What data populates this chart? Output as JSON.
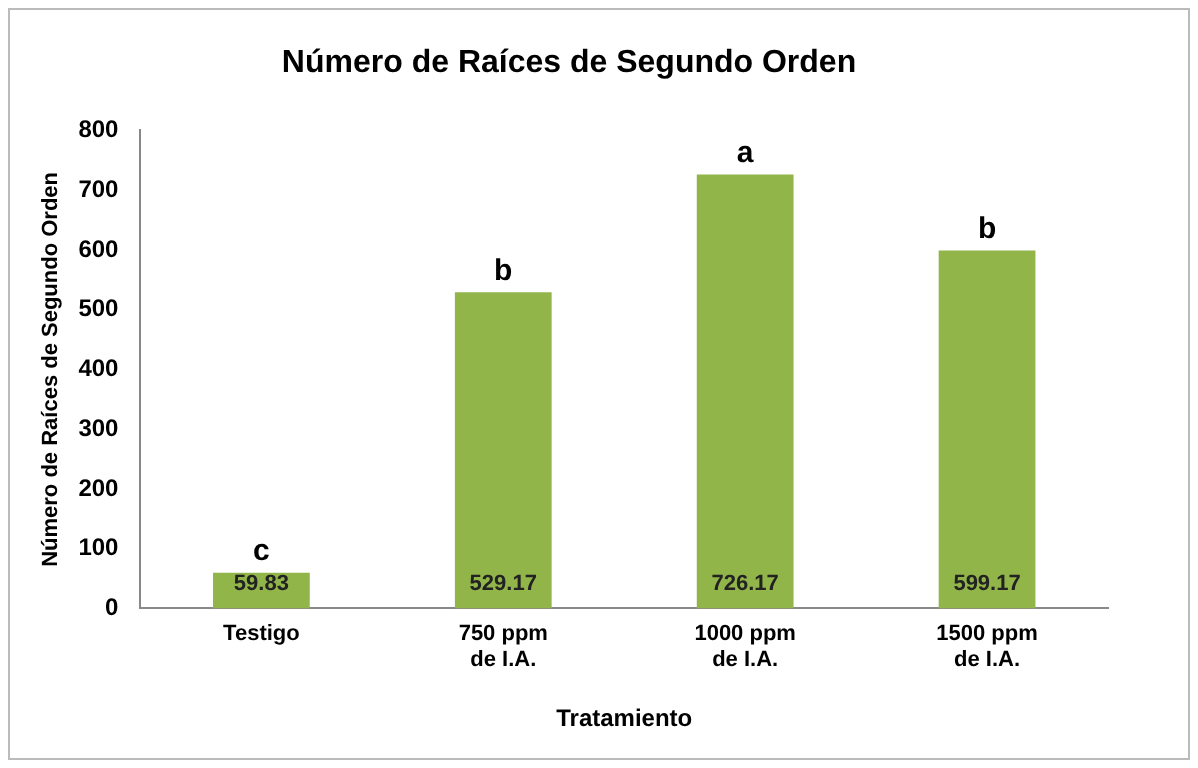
{
  "chart_data": {
    "type": "bar",
    "title": "Número de Raíces de Segundo Orden",
    "xlabel": "Tratamiento",
    "ylabel": "Número de Raíces de Segundo Orden",
    "categories": [
      "Testigo",
      "750 ppm de I.A.",
      "1000 ppm de I.A.",
      "1500 ppm de I.A."
    ],
    "values": [
      59.83,
      529.17,
      726.17,
      599.17
    ],
    "color": "#92b54a",
    "ylim": [
      0,
      800
    ],
    "yticks": [
      0,
      100,
      200,
      300,
      400,
      500,
      600,
      700,
      800
    ],
    "grid": false,
    "data_labels": true,
    "annotations": [
      {
        "text": "c",
        "x": "Testigo",
        "y": 59.83
      },
      {
        "text": "b",
        "x": "750 ppm de I.A.",
        "y": 529.17
      },
      {
        "text": "a",
        "x": "1000 ppm de I.A.",
        "y": 726.17
      },
      {
        "text": "b",
        "x": "1500 ppm de I.A.",
        "y": 599.17
      }
    ]
  }
}
